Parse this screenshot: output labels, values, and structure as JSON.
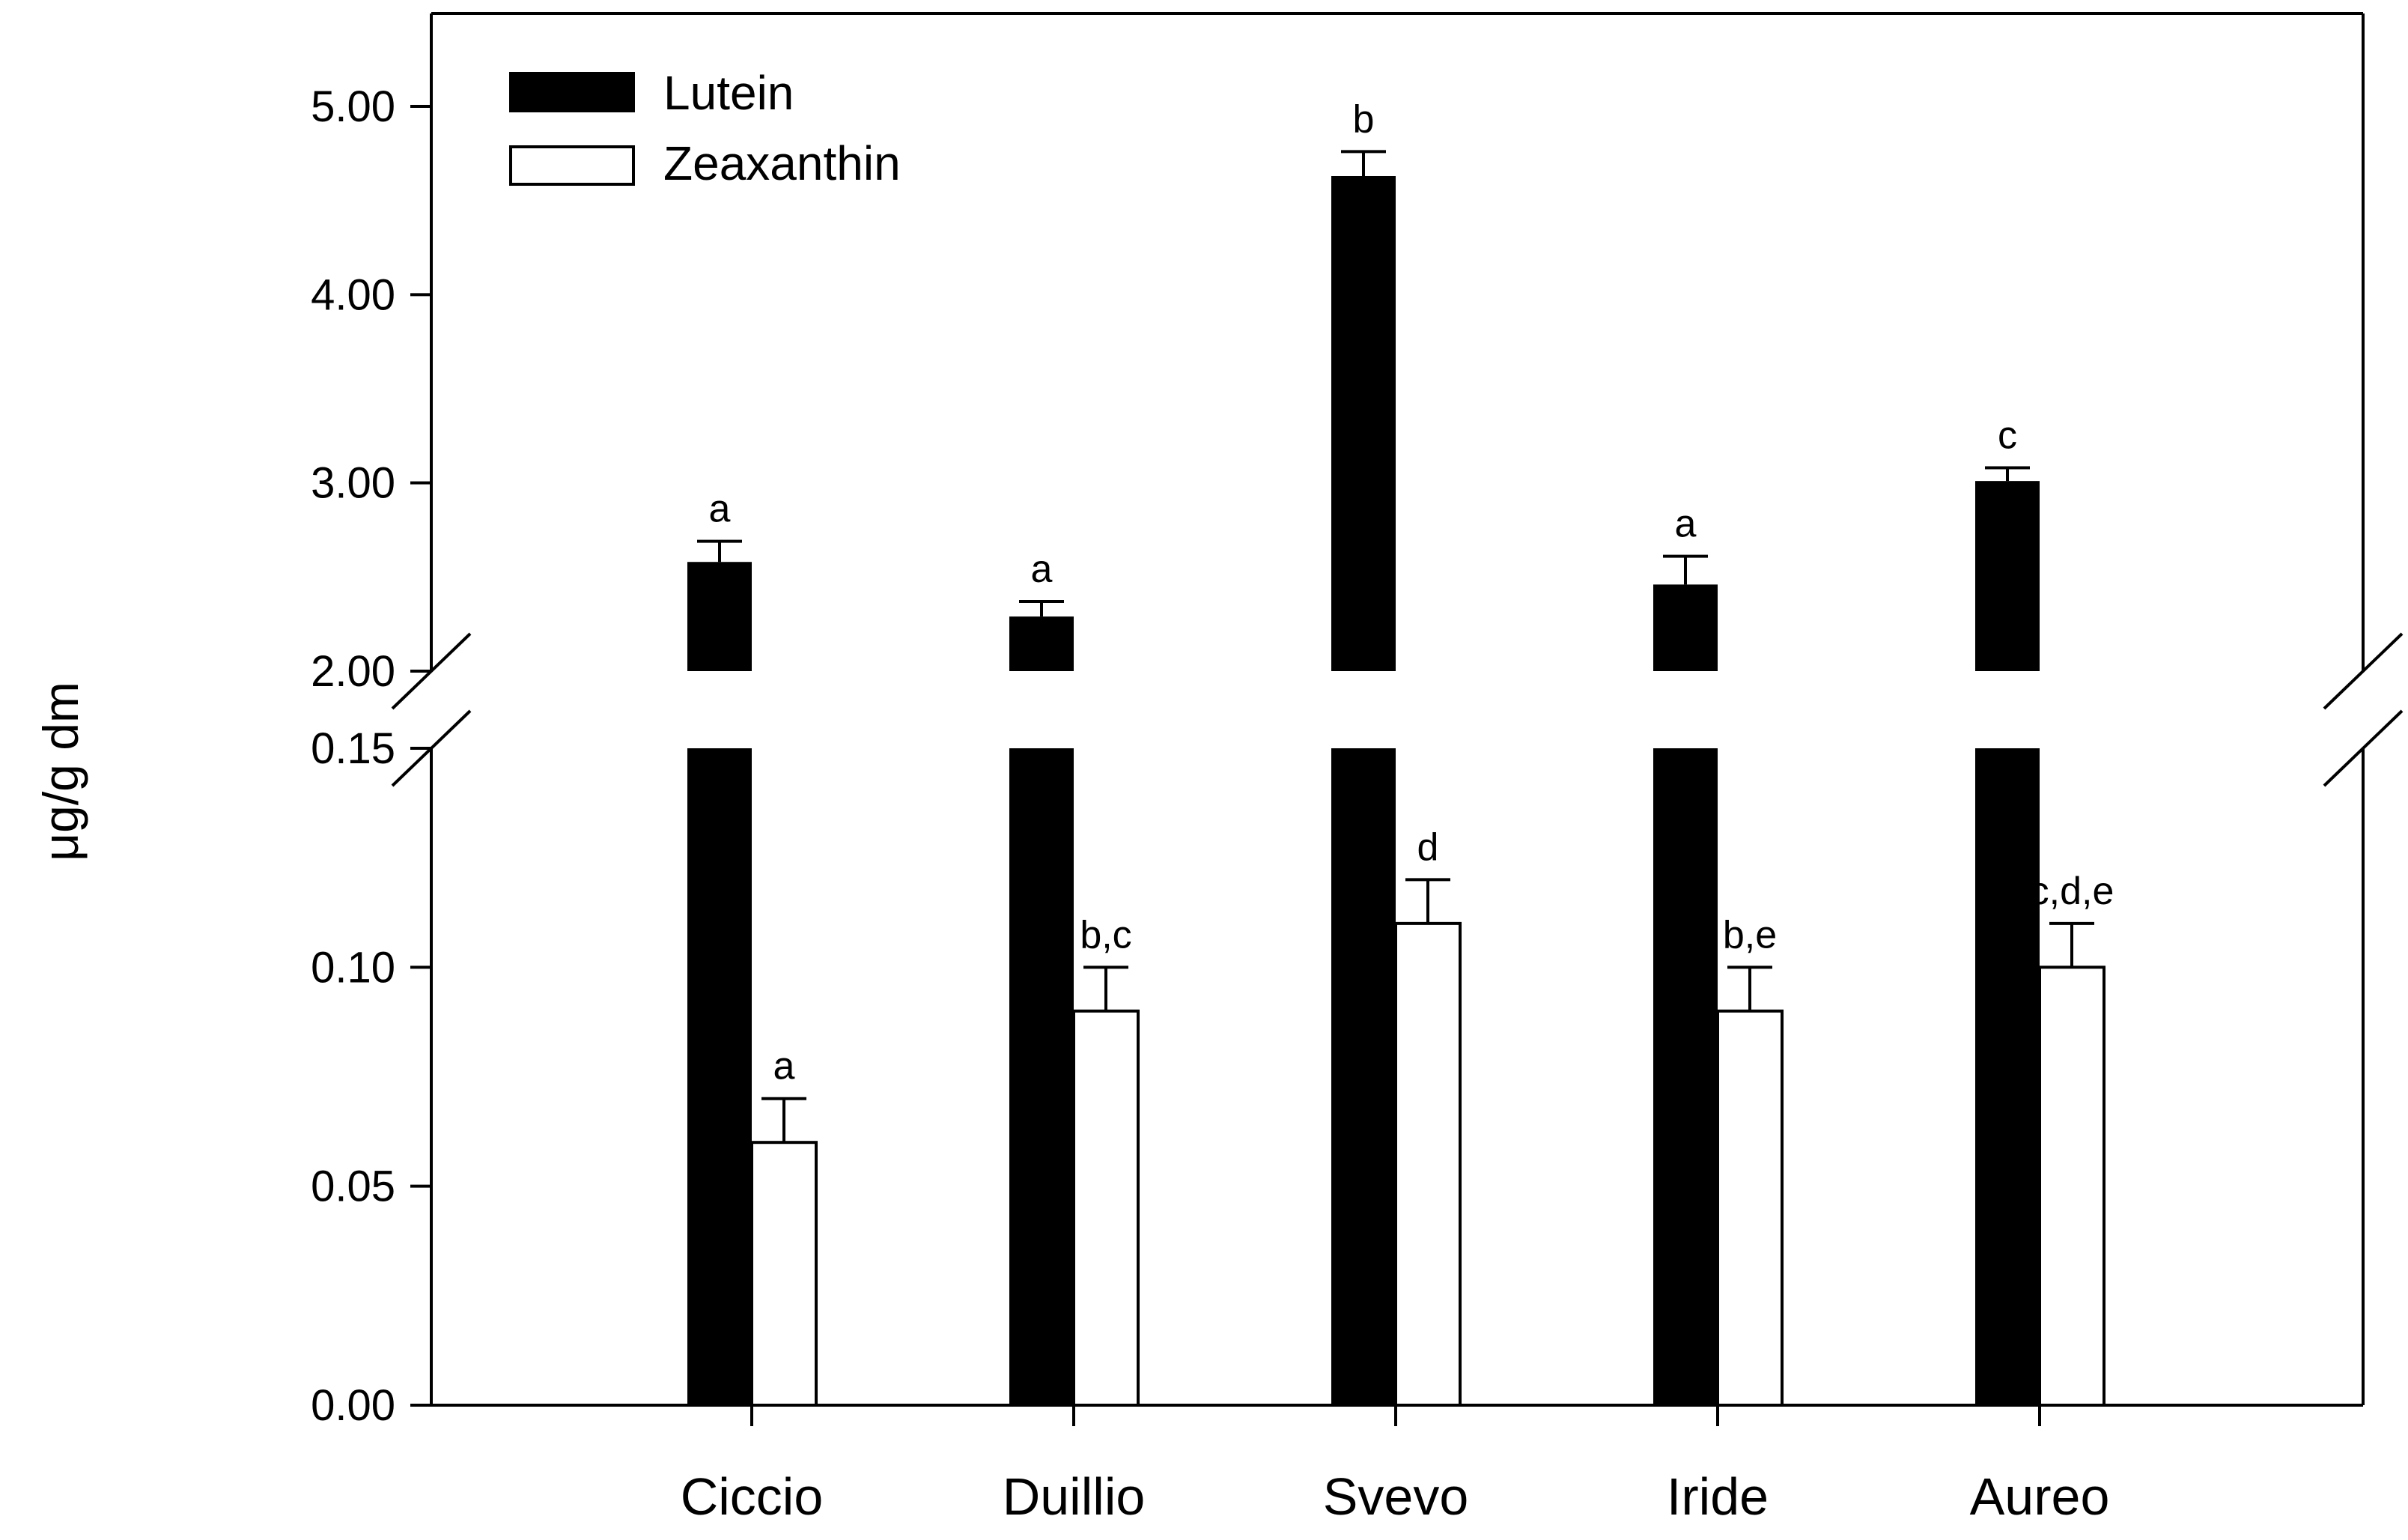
{
  "chart_data": {
    "type": "bar",
    "ylabel": "μg/g dm",
    "axis_break": true,
    "upper_segment": {
      "ylim": [
        2.0,
        5.5
      ],
      "ticks": [
        "2.00",
        "3.00",
        "4.00",
        "5.00"
      ],
      "tick_values": [
        2,
        3,
        4,
        5
      ]
    },
    "lower_segment": {
      "ylim": [
        0.0,
        0.15
      ],
      "ticks": [
        "0.00",
        "0.05",
        "0.10",
        "0.15"
      ],
      "tick_values": [
        0,
        0.05,
        0.1,
        0.15
      ]
    },
    "legend_position": "top-left",
    "categories": [
      "Ciccio",
      "Duillio",
      "Svevo",
      "Iride",
      "Aureo"
    ],
    "series": [
      {
        "name": "Lutein",
        "color": "#000000",
        "values": [
          2.58,
          2.29,
          4.63,
          2.46,
          3.01
        ],
        "errors": [
          0.11,
          0.08,
          0.13,
          0.15,
          0.07
        ],
        "labels": [
          "a",
          "a",
          "b",
          "a",
          "c"
        ]
      },
      {
        "name": "Zeaxanthin",
        "color": "#ffffff",
        "values": [
          0.06,
          0.09,
          0.11,
          0.09,
          0.1
        ],
        "errors": [
          0.01,
          0.01,
          0.01,
          0.01,
          0.01
        ],
        "labels": [
          "a",
          "b,c",
          "d",
          "b,e",
          "c,d,e"
        ]
      }
    ]
  }
}
